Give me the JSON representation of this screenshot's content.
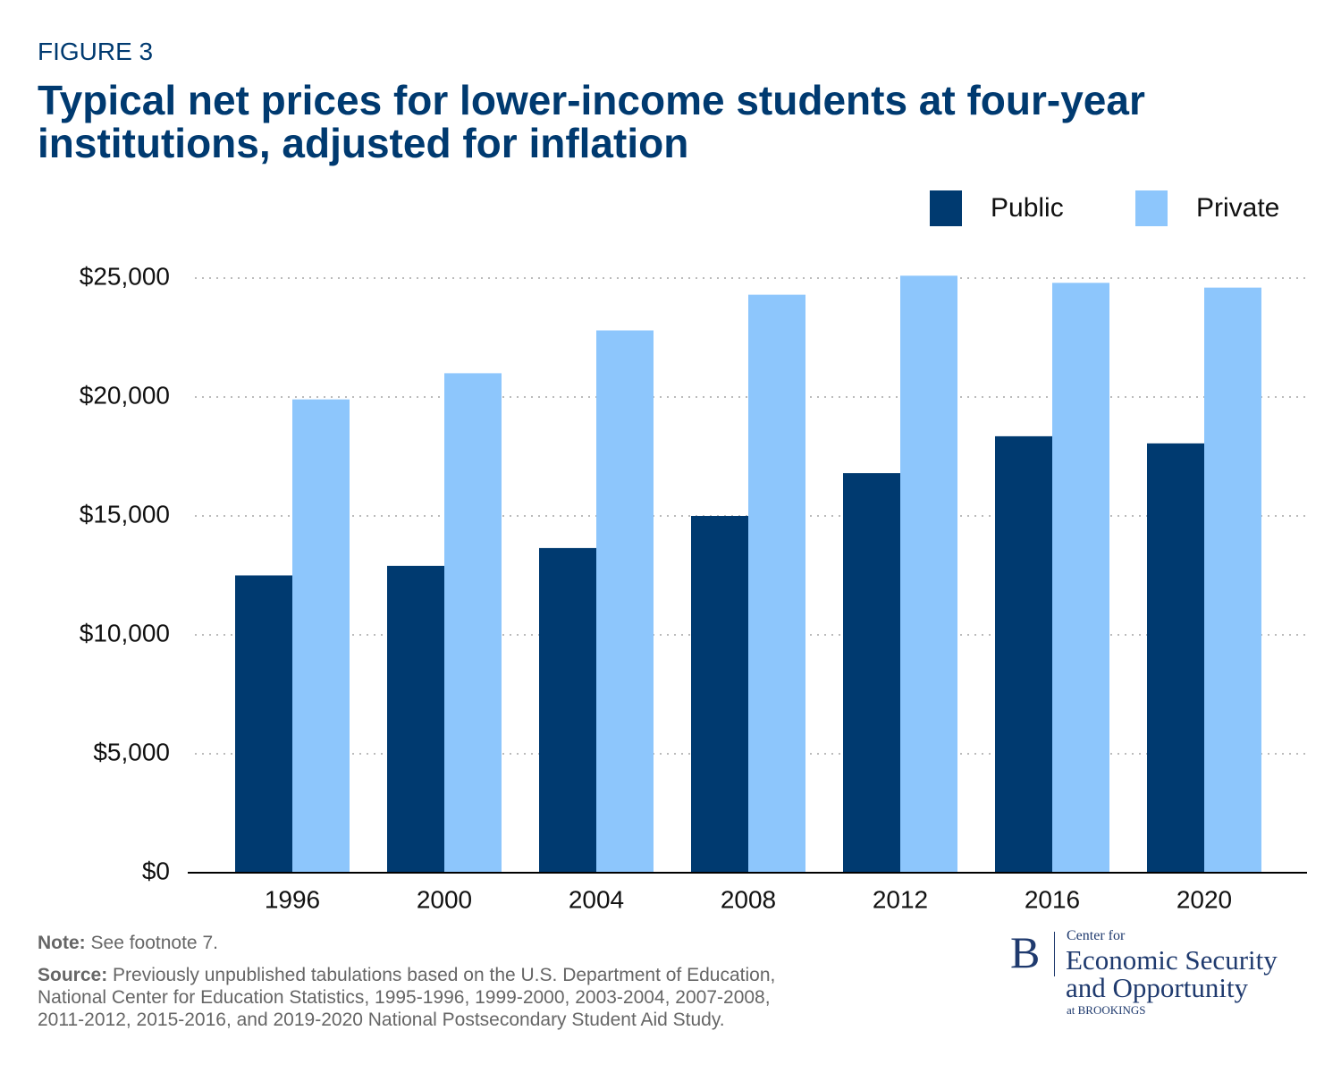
{
  "chart_data": {
    "type": "bar",
    "figure_label": "FIGURE 3",
    "title": "Typical net prices for lower-income students at four-year institutions, adjusted for inflation",
    "categories": [
      "1996",
      "2000",
      "2004",
      "2008",
      "2012",
      "2016",
      "2020"
    ],
    "series": [
      {
        "name": "Public",
        "color": "#003a70",
        "values": [
          12500,
          12900,
          13650,
          15000,
          16800,
          18350,
          18050
        ]
      },
      {
        "name": "Private",
        "color": "#8dc6fc",
        "values": [
          19900,
          21000,
          22800,
          24300,
          25100,
          24800,
          24600
        ]
      }
    ],
    "ylim": [
      0,
      25000
    ],
    "yticks": [
      {
        "value": 0,
        "label": "$0"
      },
      {
        "value": 5000,
        "label": "$5,000"
      },
      {
        "value": 10000,
        "label": "$10,000"
      },
      {
        "value": 15000,
        "label": "$15,000"
      },
      {
        "value": 20000,
        "label": "$20,000"
      },
      {
        "value": 25000,
        "label": "$25,000"
      }
    ],
    "grid": true,
    "legend": "top-right",
    "note": {
      "label": "Note:",
      "text": "See footnote 7."
    },
    "source": {
      "label": "Source:",
      "lines": [
        "Previously unpublished tabulations based on the U.S. Department of Education,",
        "National Center for Education Statistics, 1995-1996, 1999-2000, 2003-2004, 2007-2008,",
        "2011-2012, 2015-2016, and 2019-2020 National Postsecondary Student Aid Study."
      ]
    },
    "logo": {
      "letter": "B",
      "line1": "Center for",
      "line2": "Economic Security",
      "line3": "and Opportunity",
      "line4": "at BROOKINGS"
    }
  }
}
